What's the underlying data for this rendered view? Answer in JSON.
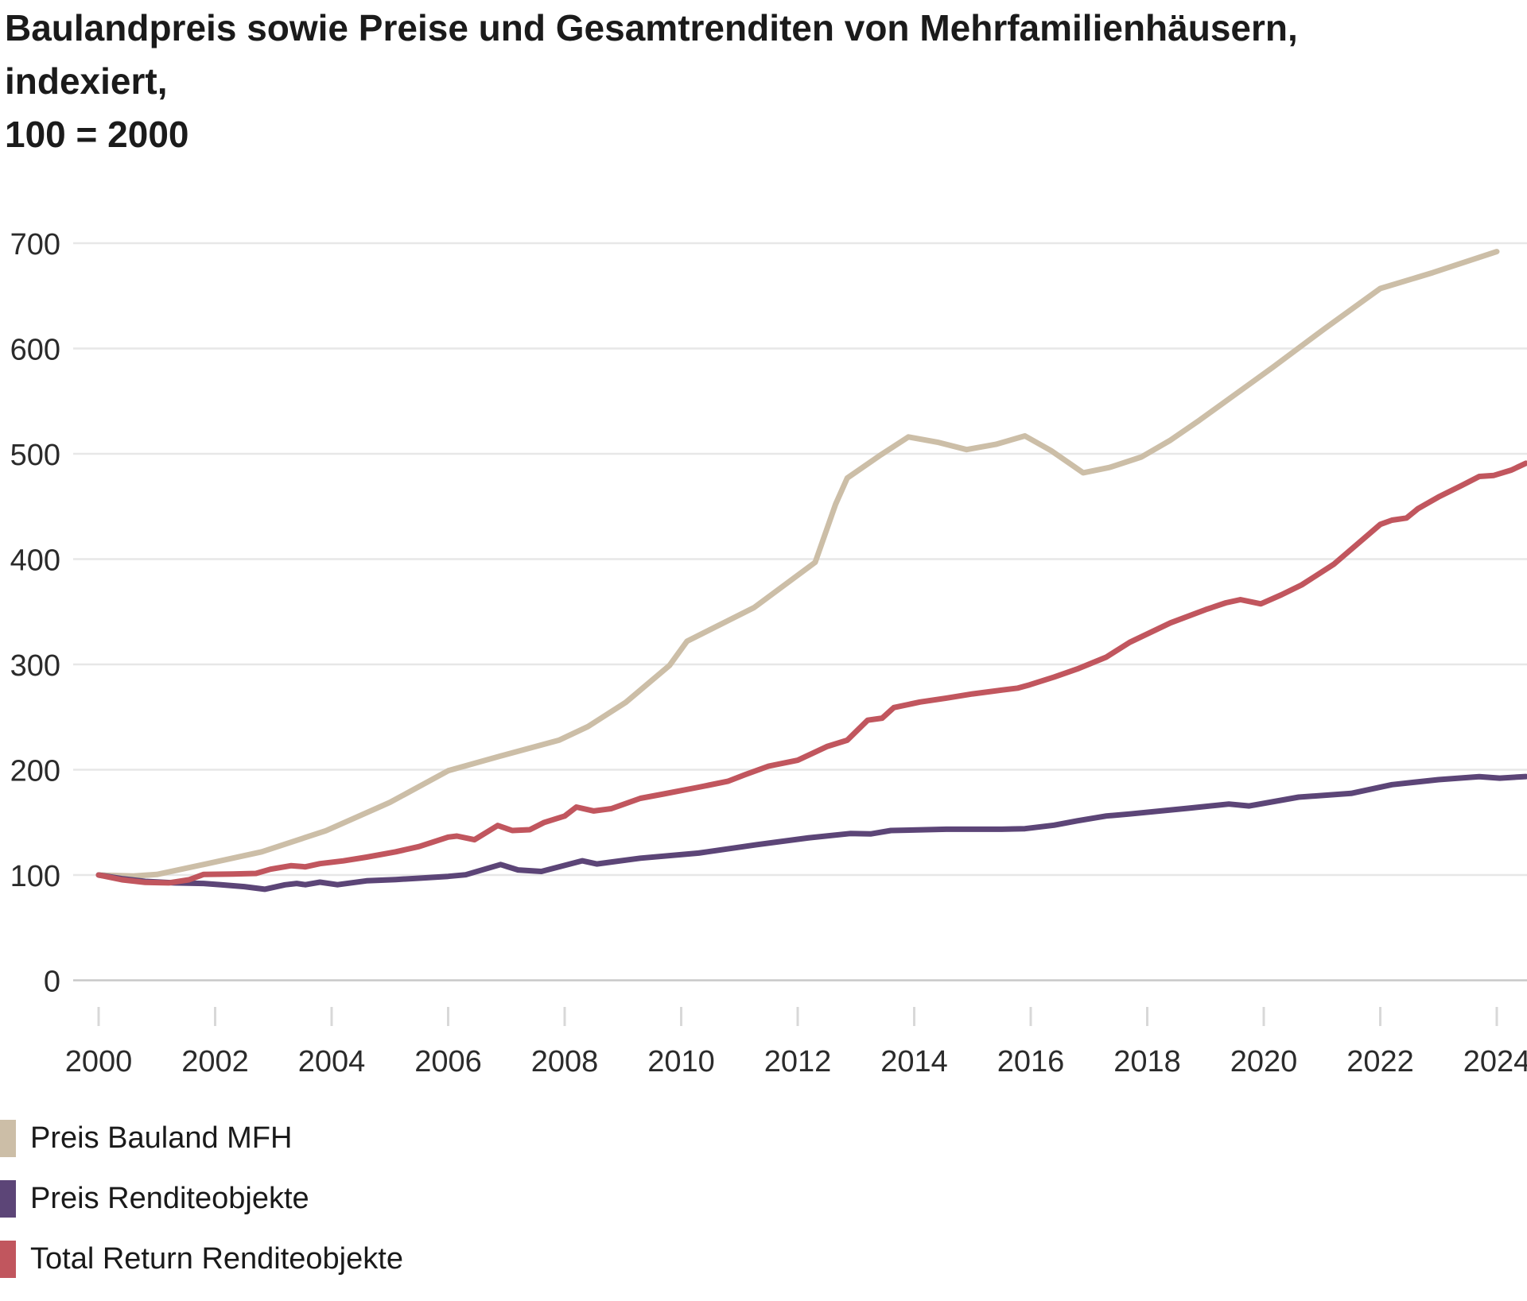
{
  "title_line1": "Baulandpreis sowie Preise und Gesamtrenditen von Mehrfamilienhäusern, indexiert,",
  "title_line2": "100 = 2000",
  "chart_data": {
    "type": "line",
    "title": "Baulandpreis sowie Preise und Gesamtrenditen von Mehrfamilienhäusern, indexiert, 100 = 2000",
    "xlabel": "",
    "ylabel": "",
    "grid": true,
    "legend_position": "bottom-left",
    "x_axis": {
      "ticks": [
        2000,
        2002,
        2004,
        2006,
        2008,
        2010,
        2012,
        2014,
        2016,
        2018,
        2020,
        2022,
        2024
      ],
      "range": [
        2000,
        2024.5
      ]
    },
    "y_axis": {
      "ticks": [
        0,
        100,
        200,
        300,
        400,
        500,
        600,
        700
      ],
      "range": [
        0,
        760
      ]
    },
    "colors": {
      "grid": "#e7e7e7",
      "zero_line": "#c9c9c9",
      "tick": "#d8d8d8",
      "axis_text": "#2b2b2b"
    },
    "series": [
      {
        "name": "Preis Bauland MFH",
        "color": "#ccbea7",
        "points": [
          [
            2000,
            100
          ],
          [
            2000.6,
            99
          ],
          [
            2001,
            100.5
          ],
          [
            2001.8,
            110
          ],
          [
            2002.8,
            122
          ],
          [
            2003.9,
            142
          ],
          [
            2005,
            169
          ],
          [
            2006,
            199
          ],
          [
            2006.9,
            213
          ],
          [
            2007.9,
            228
          ],
          [
            2008.4,
            241
          ],
          [
            2009.05,
            264
          ],
          [
            2009.8,
            299
          ],
          [
            2010.1,
            322
          ],
          [
            2011.25,
            354
          ],
          [
            2012.3,
            397
          ],
          [
            2012.65,
            452
          ],
          [
            2012.85,
            477
          ],
          [
            2013.4,
            498
          ],
          [
            2013.9,
            516
          ],
          [
            2014.4,
            511
          ],
          [
            2014.9,
            504
          ],
          [
            2015.4,
            509
          ],
          [
            2015.9,
            517
          ],
          [
            2016.35,
            503
          ],
          [
            2016.9,
            482
          ],
          [
            2017.35,
            487
          ],
          [
            2017.9,
            497
          ],
          [
            2018.4,
            513
          ],
          [
            2018.9,
            532
          ],
          [
            2020.15,
            582
          ],
          [
            2021.05,
            619
          ],
          [
            2022,
            657
          ],
          [
            2022.9,
            672
          ],
          [
            2024,
            692
          ]
        ]
      },
      {
        "name": "Preis Renditeobjekte",
        "color": "#5c4577",
        "points": [
          [
            2000,
            100
          ],
          [
            2000.4,
            96.5
          ],
          [
            2000.8,
            94
          ],
          [
            2001.3,
            92.5
          ],
          [
            2001.8,
            92
          ],
          [
            2002.1,
            90.7
          ],
          [
            2002.5,
            89
          ],
          [
            2002.85,
            86.5
          ],
          [
            2003.2,
            90.7
          ],
          [
            2003.4,
            92
          ],
          [
            2003.55,
            90.8
          ],
          [
            2003.8,
            93.2
          ],
          [
            2004.1,
            90.8
          ],
          [
            2004.6,
            94.5
          ],
          [
            2005.1,
            95.7
          ],
          [
            2005.5,
            97
          ],
          [
            2006,
            98.7
          ],
          [
            2006.3,
            100.2
          ],
          [
            2006.9,
            110
          ],
          [
            2007.2,
            104.8
          ],
          [
            2007.6,
            103.4
          ],
          [
            2008.3,
            113.5
          ],
          [
            2008.55,
            110.5
          ],
          [
            2009.3,
            116
          ],
          [
            2010.3,
            120.8
          ],
          [
            2011.3,
            128.8
          ],
          [
            2012.2,
            135.4
          ],
          [
            2012.9,
            139.4
          ],
          [
            2013.25,
            139
          ],
          [
            2013.6,
            142.3
          ],
          [
            2014.55,
            143.5
          ],
          [
            2015.5,
            143.5
          ],
          [
            2015.9,
            144
          ],
          [
            2016.4,
            147.3
          ],
          [
            2016.8,
            151.5
          ],
          [
            2017.3,
            156.1
          ],
          [
            2017.7,
            158
          ],
          [
            2018.7,
            163.4
          ],
          [
            2019.4,
            167.4
          ],
          [
            2019.75,
            165.6
          ],
          [
            2020.6,
            174
          ],
          [
            2021.5,
            177.5
          ],
          [
            2022.2,
            185.8
          ],
          [
            2023,
            190.6
          ],
          [
            2023.7,
            193.4
          ],
          [
            2024.05,
            192
          ],
          [
            2024.5,
            193.5
          ]
        ]
      },
      {
        "name": "Total Return Renditeobjekte",
        "color": "#c1565e",
        "points": [
          [
            2000,
            100
          ],
          [
            2000.4,
            95.5
          ],
          [
            2000.8,
            93
          ],
          [
            2001.2,
            92.5
          ],
          [
            2001.55,
            95.5
          ],
          [
            2001.8,
            100.5
          ],
          [
            2002.3,
            101
          ],
          [
            2002.7,
            101.5
          ],
          [
            2002.95,
            105.5
          ],
          [
            2003.3,
            108.8
          ],
          [
            2003.55,
            107.8
          ],
          [
            2003.8,
            110.8
          ],
          [
            2004.2,
            113.4
          ],
          [
            2004.6,
            117
          ],
          [
            2005.1,
            122
          ],
          [
            2005.5,
            127
          ],
          [
            2006,
            136
          ],
          [
            2006.15,
            137
          ],
          [
            2006.45,
            133.5
          ],
          [
            2006.85,
            147
          ],
          [
            2007.1,
            142.3
          ],
          [
            2007.4,
            143
          ],
          [
            2007.65,
            150
          ],
          [
            2008,
            156
          ],
          [
            2008.2,
            164.5
          ],
          [
            2008.5,
            160.8
          ],
          [
            2008.8,
            163
          ],
          [
            2009.3,
            172.8
          ],
          [
            2009.7,
            177
          ],
          [
            2010.3,
            183.4
          ],
          [
            2010.8,
            189
          ],
          [
            2011.1,
            195.4
          ],
          [
            2011.5,
            203.4
          ],
          [
            2012,
            209
          ],
          [
            2012.5,
            222
          ],
          [
            2012.85,
            228
          ],
          [
            2013.2,
            247
          ],
          [
            2013.45,
            249
          ],
          [
            2013.65,
            259
          ],
          [
            2014.1,
            264.3
          ],
          [
            2014.55,
            268
          ],
          [
            2015,
            272
          ],
          [
            2015.5,
            275.6
          ],
          [
            2015.78,
            277.5
          ],
          [
            2015.98,
            280.6
          ],
          [
            2016.4,
            288
          ],
          [
            2016.8,
            295.7
          ],
          [
            2017.3,
            307
          ],
          [
            2017.7,
            321
          ],
          [
            2018.4,
            339.5
          ],
          [
            2019,
            352
          ],
          [
            2019.35,
            358.5
          ],
          [
            2019.6,
            361.5
          ],
          [
            2019.95,
            357.5
          ],
          [
            2020.3,
            366
          ],
          [
            2020.65,
            375.5
          ],
          [
            2021.2,
            395
          ],
          [
            2021.6,
            414
          ],
          [
            2022,
            433
          ],
          [
            2022.2,
            437
          ],
          [
            2022.45,
            439
          ],
          [
            2022.65,
            448
          ],
          [
            2023,
            459
          ],
          [
            2023.4,
            470
          ],
          [
            2023.7,
            478.5
          ],
          [
            2023.95,
            479.5
          ],
          [
            2024.25,
            484.5
          ],
          [
            2024.5,
            491
          ]
        ]
      }
    ]
  },
  "legend": {
    "items": [
      {
        "label": "Preis Bauland MFH",
        "color": "#ccbea7"
      },
      {
        "label": "Preis Renditeobjekte",
        "color": "#5c4577"
      },
      {
        "label": "Total Return Renditeobjekte",
        "color": "#c1565e"
      }
    ]
  }
}
